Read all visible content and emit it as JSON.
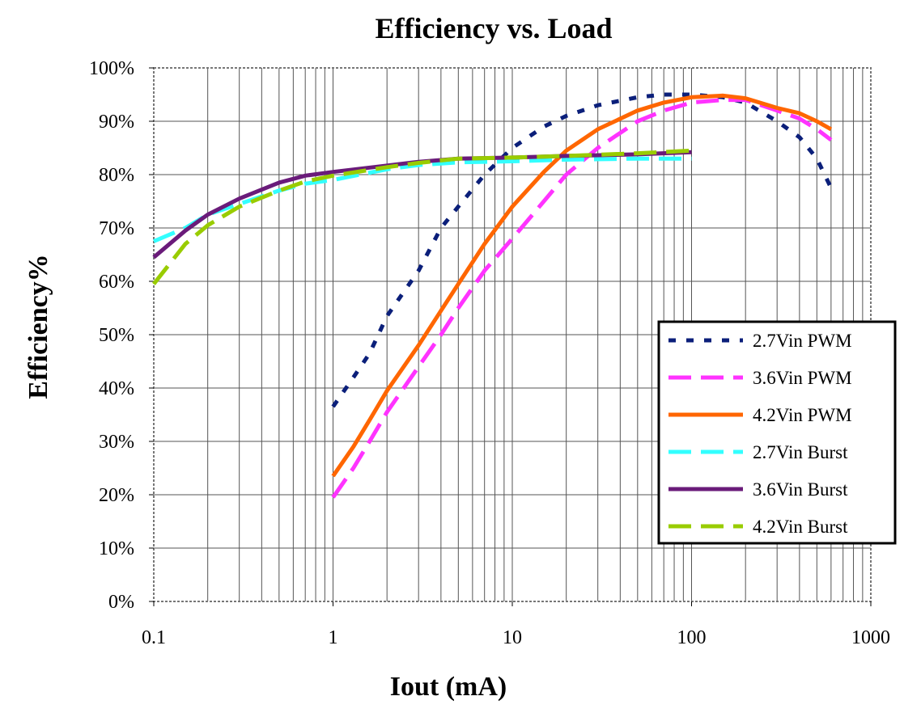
{
  "chart_data": {
    "type": "line",
    "title": "Efficiency vs. Load",
    "xlabel": "Iout (mA)",
    "ylabel": "Efficiency%",
    "xscale": "log",
    "xlim": [
      0.1,
      1000
    ],
    "ylim": [
      0,
      100
    ],
    "x_ticks": [
      "0.1",
      "1",
      "10",
      "100",
      "1000"
    ],
    "y_ticks": [
      "0%",
      "10%",
      "20%",
      "30%",
      "40%",
      "50%",
      "60%",
      "70%",
      "80%",
      "90%",
      "100%"
    ],
    "grid": true,
    "legend_position": "bottom-right",
    "series": [
      {
        "name": "2.7Vin PWM",
        "color": "#0b1f7a",
        "dash": "dotted",
        "points": [
          [
            1,
            36.5
          ],
          [
            1.3,
            42
          ],
          [
            1.6,
            46.5
          ],
          [
            2,
            53.5
          ],
          [
            3,
            62
          ],
          [
            4,
            70
          ],
          [
            5,
            74
          ],
          [
            7,
            80
          ],
          [
            10,
            85
          ],
          [
            15,
            89
          ],
          [
            20,
            91
          ],
          [
            30,
            93
          ],
          [
            50,
            94.5
          ],
          [
            70,
            95
          ],
          [
            100,
            95
          ],
          [
            150,
            94.5
          ],
          [
            200,
            93.5
          ],
          [
            300,
            90
          ],
          [
            400,
            87
          ],
          [
            500,
            83
          ],
          [
            600,
            77.5
          ]
        ]
      },
      {
        "name": "3.6Vin PWM",
        "color": "#ff33ff",
        "dash": "dashed",
        "points": [
          [
            1,
            19.5
          ],
          [
            1.3,
            25
          ],
          [
            1.6,
            30
          ],
          [
            2,
            35.5
          ],
          [
            3,
            44
          ],
          [
            4,
            50
          ],
          [
            5,
            55
          ],
          [
            7,
            62
          ],
          [
            10,
            68
          ],
          [
            15,
            75
          ],
          [
            20,
            80
          ],
          [
            30,
            85
          ],
          [
            50,
            90
          ],
          [
            70,
            92
          ],
          [
            100,
            93.5
          ],
          [
            150,
            94
          ],
          [
            200,
            94
          ],
          [
            300,
            92
          ],
          [
            400,
            90.5
          ],
          [
            500,
            88.5
          ],
          [
            600,
            86.5
          ]
        ]
      },
      {
        "name": "4.2Vin PWM",
        "color": "#ff6600",
        "dash": "solid",
        "points": [
          [
            1,
            23.5
          ],
          [
            1.3,
            29
          ],
          [
            1.6,
            34
          ],
          [
            2,
            39.5
          ],
          [
            3,
            48
          ],
          [
            4,
            54.5
          ],
          [
            5,
            59.5
          ],
          [
            7,
            67
          ],
          [
            10,
            74
          ],
          [
            15,
            80.5
          ],
          [
            20,
            84.5
          ],
          [
            30,
            88.5
          ],
          [
            50,
            92
          ],
          [
            70,
            93.5
          ],
          [
            100,
            94.5
          ],
          [
            150,
            94.8
          ],
          [
            200,
            94.3
          ],
          [
            300,
            92.5
          ],
          [
            400,
            91.5
          ],
          [
            500,
            90
          ],
          [
            600,
            88.5
          ]
        ]
      },
      {
        "name": "2.7Vin Burst",
        "color": "#33ffff",
        "dash": "dashed",
        "points": [
          [
            0.1,
            67.5
          ],
          [
            0.15,
            70
          ],
          [
            0.2,
            72.5
          ],
          [
            0.3,
            74.5
          ],
          [
            0.5,
            77
          ],
          [
            0.7,
            78.3
          ],
          [
            1,
            79
          ],
          [
            2,
            81
          ],
          [
            3,
            81.8
          ],
          [
            5,
            82.3
          ],
          [
            10,
            82.5
          ],
          [
            20,
            82.8
          ],
          [
            50,
            83
          ],
          [
            100,
            83
          ]
        ]
      },
      {
        "name": "3.6Vin Burst",
        "color": "#6a1b7a",
        "dash": "solid",
        "points": [
          [
            0.1,
            64.5
          ],
          [
            0.15,
            69.5
          ],
          [
            0.2,
            72.5
          ],
          [
            0.3,
            75.5
          ],
          [
            0.5,
            78.5
          ],
          [
            0.7,
            79.8
          ],
          [
            1,
            80.5
          ],
          [
            2,
            81.7
          ],
          [
            3,
            82.4
          ],
          [
            5,
            83
          ],
          [
            10,
            83.2
          ],
          [
            20,
            83.5
          ],
          [
            50,
            83.8
          ],
          [
            100,
            84.2
          ]
        ]
      },
      {
        "name": "4.2Vin Burst",
        "color": "#99cc00",
        "dash": "dashed",
        "points": [
          [
            0.1,
            59.5
          ],
          [
            0.15,
            67
          ],
          [
            0.2,
            70.5
          ],
          [
            0.3,
            74
          ],
          [
            0.5,
            77
          ],
          [
            0.7,
            78.7
          ],
          [
            1,
            79.8
          ],
          [
            2,
            81.4
          ],
          [
            3,
            82.2
          ],
          [
            5,
            83
          ],
          [
            10,
            83.2
          ],
          [
            20,
            83.5
          ],
          [
            50,
            84
          ],
          [
            100,
            84.5
          ]
        ]
      }
    ]
  }
}
